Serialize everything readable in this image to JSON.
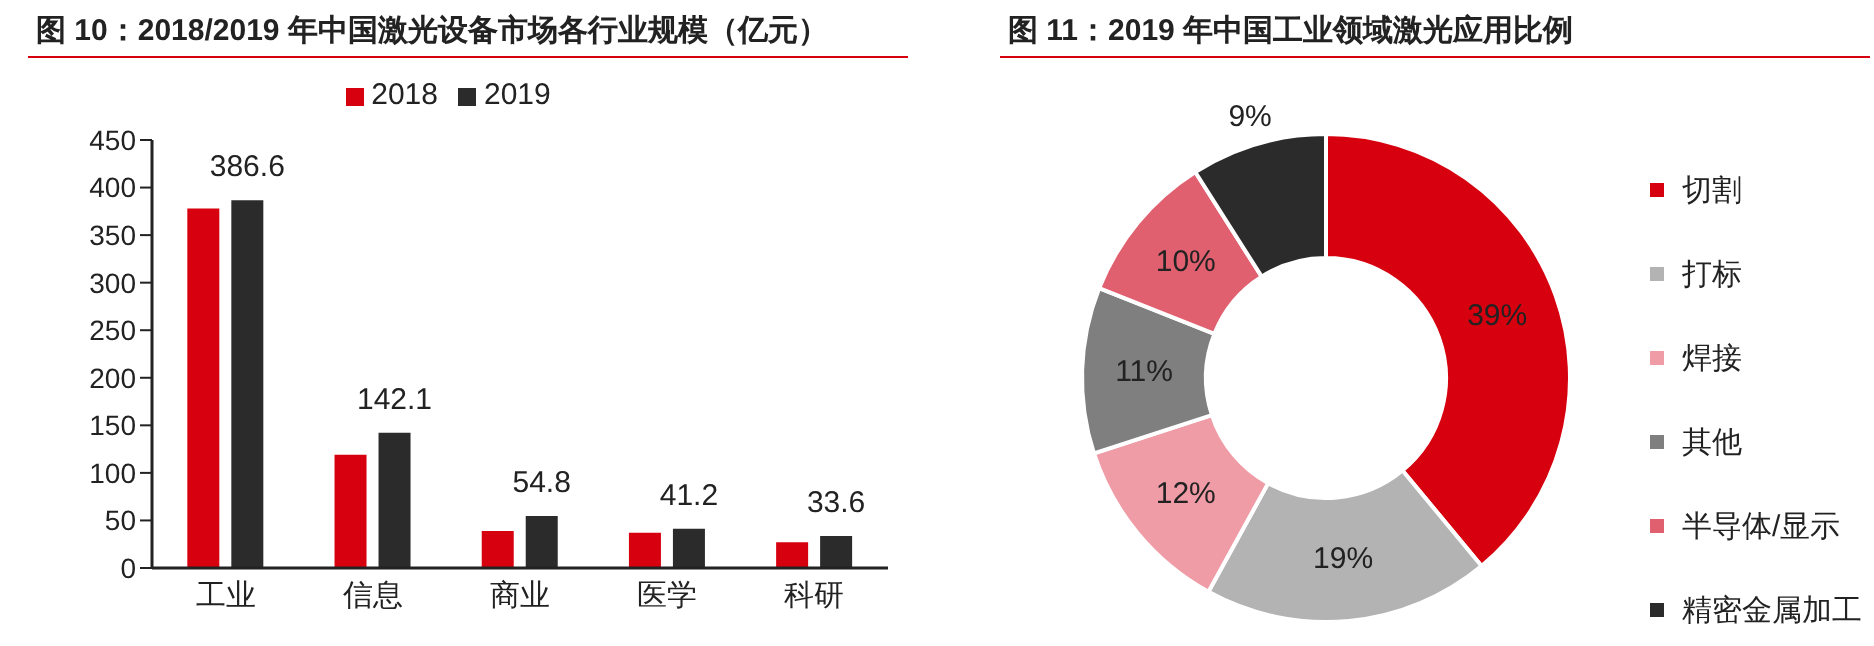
{
  "chart_data": [
    {
      "type": "bar",
      "title": "图 10：2018/2019 年中国激光设备市场各行业规模（亿元）",
      "categories": [
        "工业",
        "信息",
        "商业",
        "医学",
        "科研"
      ],
      "series": [
        {
          "name": "2018",
          "color": "#d7000f",
          "values": [
            378,
            119,
            39,
            37,
            27
          ]
        },
        {
          "name": "2019",
          "color": "#2b2b2b",
          "values": [
            386.6,
            142.1,
            54.8,
            41.2,
            33.6
          ],
          "value_labels": [
            "386.6",
            "142.1",
            "54.8",
            "41.2",
            "33.6"
          ]
        }
      ],
      "ylim": [
        0,
        450
      ],
      "yticks": [
        0,
        50,
        100,
        150,
        200,
        250,
        300,
        350,
        400,
        450
      ],
      "grid": false,
      "legend": "top"
    },
    {
      "type": "donut",
      "title": "图 11：2019 年中国工业领域激光应用比例",
      "categories": [
        "切割",
        "打标",
        "焊接",
        "其他",
        "半导体/显示",
        "精密金属加工"
      ],
      "values": [
        39,
        19,
        12,
        11,
        10,
        9
      ],
      "colors": [
        "#d7000f",
        "#b3b3b3",
        "#f09ca6",
        "#7f7f7f",
        "#e06070",
        "#2b2b2b"
      ],
      "value_labels": [
        "39%",
        "19%",
        "12%",
        "11%",
        "10%",
        "9%"
      ],
      "legend": "right"
    }
  ]
}
